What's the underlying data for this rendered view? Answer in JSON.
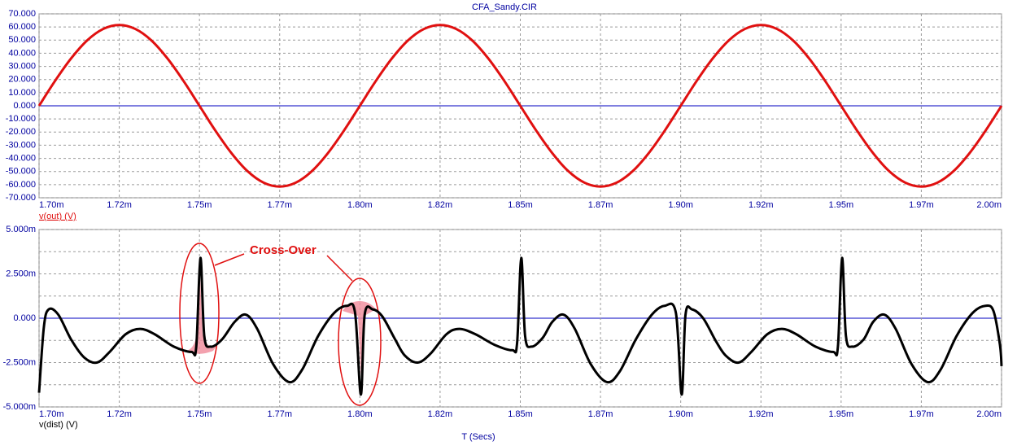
{
  "chart_data": [
    {
      "type": "line",
      "title": "CFA_Sandy.CIR",
      "xlim": [
        1.7,
        2.0
      ],
      "xticks": [
        {
          "value": 1.7,
          "label": "1.70m"
        },
        {
          "value": 1.725,
          "label": "1.72m"
        },
        {
          "value": 1.75,
          "label": "1.75m"
        },
        {
          "value": 1.775,
          "label": "1.77m"
        },
        {
          "value": 1.8,
          "label": "1.80m"
        },
        {
          "value": 1.825,
          "label": "1.82m"
        },
        {
          "value": 1.85,
          "label": "1.85m"
        },
        {
          "value": 1.875,
          "label": "1.87m"
        },
        {
          "value": 1.9,
          "label": "1.90m"
        },
        {
          "value": 1.925,
          "label": "1.92m"
        },
        {
          "value": 1.95,
          "label": "1.95m"
        },
        {
          "value": 1.975,
          "label": "1.97m"
        },
        {
          "value": 2.0,
          "label": "2.00m"
        }
      ],
      "ylim": [
        -70,
        70
      ],
      "yticks": [
        {
          "value": 70,
          "label": "70.000"
        },
        {
          "value": 60,
          "label": "60.000"
        },
        {
          "value": 50,
          "label": "50.000"
        },
        {
          "value": 40,
          "label": "40.000"
        },
        {
          "value": 30,
          "label": "30.000"
        },
        {
          "value": 20,
          "label": "20.000"
        },
        {
          "value": 10,
          "label": "10.000"
        },
        {
          "value": 0,
          "label": "0.000"
        },
        {
          "value": -10,
          "label": "-10.000"
        },
        {
          "value": -20,
          "label": "-20.000"
        },
        {
          "value": -30,
          "label": "-30.000"
        },
        {
          "value": -40,
          "label": "-40.000"
        },
        {
          "value": -50,
          "label": "-50.000"
        },
        {
          "value": -60,
          "label": "-60.000"
        },
        {
          "value": -70,
          "label": "-70.000"
        }
      ],
      "grid": true,
      "series": [
        {
          "name": "v(out) (V)",
          "color": "#e01010",
          "x": [
            1.7,
            1.705,
            1.71,
            1.715,
            1.72,
            1.725,
            1.73,
            1.735,
            1.74,
            1.745,
            1.75,
            1.755,
            1.76,
            1.765,
            1.77,
            1.775,
            1.78,
            1.785,
            1.79,
            1.795,
            1.8,
            1.805,
            1.81,
            1.815,
            1.82,
            1.825,
            1.83,
            1.835,
            1.84,
            1.845,
            1.85,
            1.855,
            1.86,
            1.865,
            1.87,
            1.875,
            1.88,
            1.885,
            1.89,
            1.895,
            1.9,
            1.905,
            1.91,
            1.915,
            1.92,
            1.925,
            1.93,
            1.935,
            1.94,
            1.945,
            1.95,
            1.955,
            1.96,
            1.965,
            1.97,
            1.975,
            1.98,
            1.985,
            1.99,
            1.995,
            2.0
          ],
          "values": [
            0,
            19.0,
            36.1,
            49.8,
            58.5,
            61.5,
            58.5,
            49.8,
            36.1,
            19.0,
            0,
            -19.0,
            -36.1,
            -49.8,
            -58.5,
            -61.5,
            -58.5,
            -49.8,
            -36.1,
            -19.0,
            0,
            19.0,
            36.1,
            49.8,
            58.5,
            61.5,
            58.5,
            49.8,
            36.1,
            19.0,
            0,
            -19.0,
            -36.1,
            -49.8,
            -58.5,
            -61.5,
            -58.5,
            -49.8,
            -36.1,
            -19.0,
            0,
            19.0,
            36.1,
            49.8,
            58.5,
            61.5,
            58.5,
            49.8,
            36.1,
            19.0,
            0,
            -19.0,
            -36.1,
            -49.8,
            -58.5,
            -61.5,
            -58.5,
            -49.8,
            -36.1,
            -19.0,
            0
          ]
        }
      ]
    },
    {
      "type": "line",
      "xlabel": "T (Secs)",
      "annotations": [
        "Cross-Over"
      ],
      "xlim": [
        1.7,
        2.0
      ],
      "xticks": [
        {
          "value": 1.7,
          "label": "1.70m"
        },
        {
          "value": 1.725,
          "label": "1.72m"
        },
        {
          "value": 1.75,
          "label": "1.75m"
        },
        {
          "value": 1.775,
          "label": "1.77m"
        },
        {
          "value": 1.8,
          "label": "1.80m"
        },
        {
          "value": 1.825,
          "label": "1.82m"
        },
        {
          "value": 1.85,
          "label": "1.85m"
        },
        {
          "value": 1.875,
          "label": "1.87m"
        },
        {
          "value": 1.9,
          "label": "1.90m"
        },
        {
          "value": 1.925,
          "label": "1.92m"
        },
        {
          "value": 1.95,
          "label": "1.95m"
        },
        {
          "value": 1.975,
          "label": "1.97m"
        },
        {
          "value": 2.0,
          "label": "2.00m"
        }
      ],
      "ylim": [
        -5,
        5
      ],
      "yticks": [
        {
          "value": 5,
          "label": "5.000m"
        },
        {
          "value": 2.5,
          "label": "2.500m"
        },
        {
          "value": 0,
          "label": "0.000"
        },
        {
          "value": -2.5,
          "label": "-2.500m"
        },
        {
          "value": -5,
          "label": "-5.000m"
        }
      ],
      "yminorticks": [
        3.75,
        1.25,
        -1.25,
        -3.75
      ],
      "grid": true,
      "series": [
        {
          "name": "v(dist) (V)",
          "color": "#000000",
          "x": [
            1.7,
            1.7015,
            1.703,
            1.706,
            1.71,
            1.714,
            1.718,
            1.722,
            1.727,
            1.7315,
            1.736,
            1.742,
            1.7475,
            1.749,
            1.7503,
            1.7515,
            1.7535,
            1.757,
            1.761,
            1.7645,
            1.768,
            1.773,
            1.778,
            1.782,
            1.787,
            1.792,
            1.796,
            1.7985,
            1.8003,
            1.8015,
            1.804,
            1.807,
            1.811,
            1.814,
            1.818,
            1.822,
            1.827,
            1.831,
            1.836,
            1.842,
            1.8475,
            1.849,
            1.8503,
            1.8515,
            1.8535,
            1.857,
            1.86,
            1.8635,
            1.867,
            1.872,
            1.877,
            1.881,
            1.886,
            1.891,
            1.895,
            1.8985,
            1.9003,
            1.9015,
            1.9035,
            1.907,
            1.911,
            1.914,
            1.918,
            1.922,
            1.927,
            1.9315,
            1.936,
            1.942,
            1.9475,
            1.949,
            1.9503,
            1.9515,
            1.9535,
            1.957,
            1.96,
            1.9635,
            1.967,
            1.972,
            1.977,
            1.981,
            1.986,
            1.991,
            1.995,
            1.9975,
            1.9995,
            2.0
          ],
          "values": [
            -4.2,
            -0.5,
            0.5,
            0.2,
            -1.2,
            -2.2,
            -2.5,
            -1.9,
            -0.9,
            -0.6,
            -0.9,
            -1.6,
            -1.9,
            -1.6,
            3.4,
            -1.0,
            -1.6,
            -1.2,
            -0.2,
            0.2,
            -0.6,
            -2.6,
            -3.6,
            -2.9,
            -1.0,
            0.3,
            0.7,
            0.3,
            -4.3,
            0.2,
            0.5,
            0.1,
            -1.2,
            -2.1,
            -2.5,
            -2.0,
            -0.9,
            -0.6,
            -0.9,
            -1.5,
            -1.8,
            -1.4,
            3.4,
            -1.0,
            -1.6,
            -1.1,
            -0.2,
            0.2,
            -0.6,
            -2.6,
            -3.6,
            -3.0,
            -1.2,
            0.2,
            0.7,
            0.3,
            -4.3,
            0.2,
            0.5,
            0.0,
            -1.3,
            -2.1,
            -2.5,
            -1.9,
            -0.9,
            -0.6,
            -0.9,
            -1.6,
            -1.9,
            -1.6,
            3.4,
            -1.0,
            -1.6,
            -1.2,
            -0.2,
            0.2,
            -0.6,
            -2.6,
            -3.6,
            -2.9,
            -1.0,
            0.3,
            0.7,
            0.4,
            -1.5,
            -2.7
          ]
        }
      ]
    }
  ]
}
